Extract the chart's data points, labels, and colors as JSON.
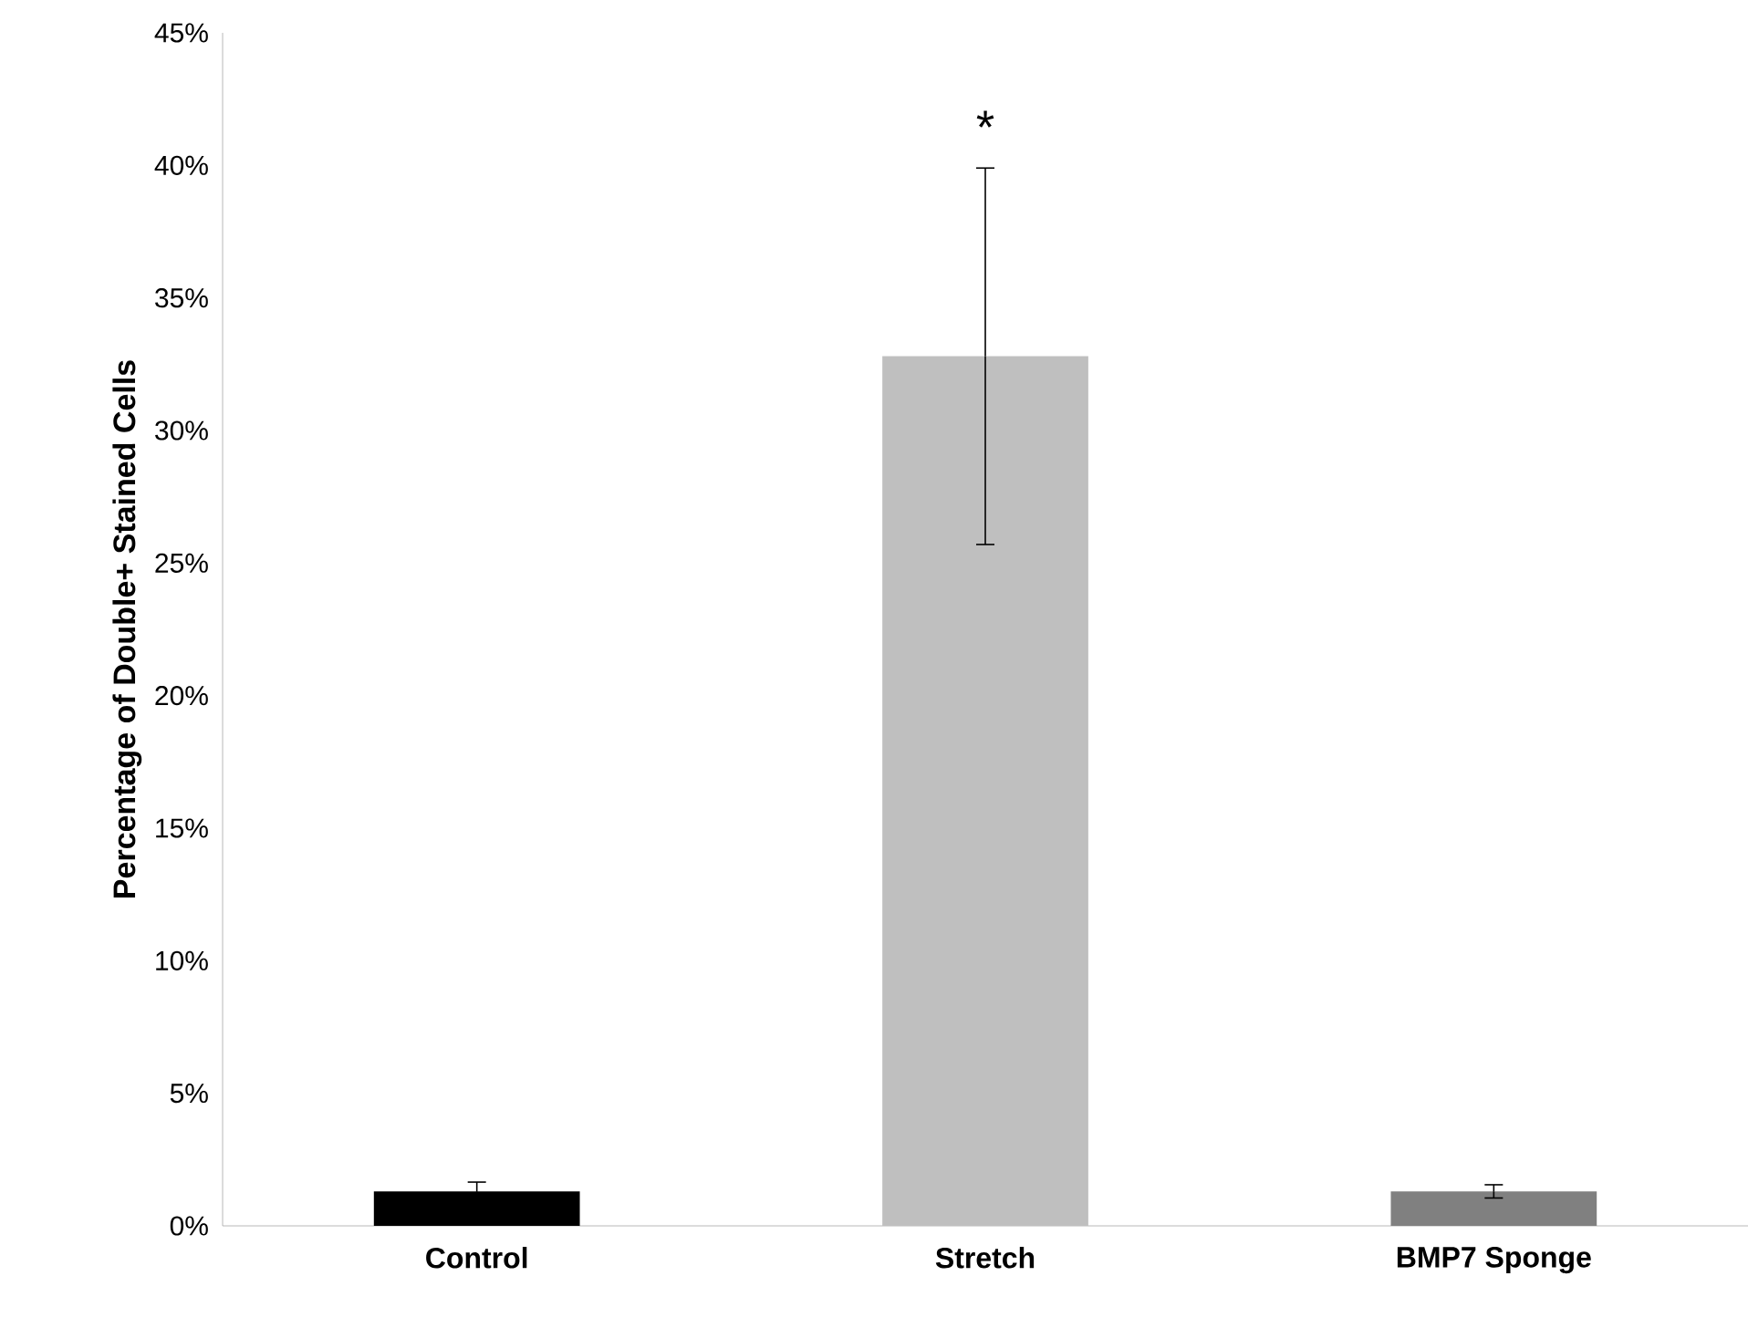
{
  "chart_data": {
    "type": "bar",
    "ylabel": "Percentage of Double+ Stained Cells",
    "categories": [
      "Control",
      "Stretch",
      "BMP7 Sponge"
    ],
    "values": [
      1.3,
      32.8,
      1.3
    ],
    "colors": [
      "#000000",
      "#bfbfbf",
      "#808080"
    ],
    "errors": [
      0.35,
      7.1,
      0.25
    ],
    "ylim": [
      0,
      45
    ],
    "yticks": [
      {
        "value": 0,
        "label": "0%"
      },
      {
        "value": 5,
        "label": "5%"
      },
      {
        "value": 10,
        "label": "10%"
      },
      {
        "value": 15,
        "label": "15%"
      },
      {
        "value": 20,
        "label": "20%"
      },
      {
        "value": 25,
        "label": "25%"
      },
      {
        "value": 30,
        "label": "30%"
      },
      {
        "value": 35,
        "label": "35%"
      },
      {
        "value": 40,
        "label": "40%"
      },
      {
        "value": 45,
        "label": "45%"
      }
    ],
    "annotations": [
      "*"
    ],
    "grid": false
  }
}
